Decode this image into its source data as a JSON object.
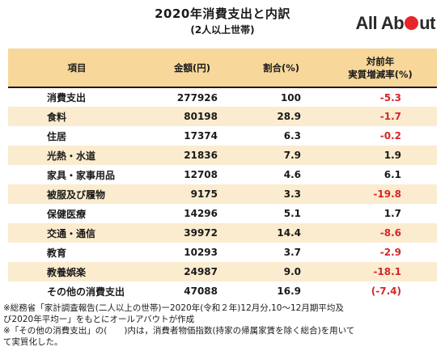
{
  "header": {
    "title": "2020年消費支出と内訳",
    "subtitle": "(2人以上世帯)",
    "logo_prefix": "All Ab",
    "logo_suffix": "ut"
  },
  "columns": {
    "item": "項目",
    "amount": "金額(円)",
    "ratio": "割合(%)",
    "change_line1": "対前年",
    "change_line2": "実質増減率(%)"
  },
  "rows": [
    {
      "item": "消費支出",
      "amount": "277926",
      "ratio": "100",
      "change": "-5.3",
      "negative": true
    },
    {
      "item": "食料",
      "amount": "80198",
      "ratio": "28.9",
      "change": "-1.7",
      "negative": true
    },
    {
      "item": "住居",
      "amount": "17374",
      "ratio": "6.3",
      "change": "-0.2",
      "negative": true
    },
    {
      "item": "光熱・水道",
      "amount": "21836",
      "ratio": "7.9",
      "change": "1.9",
      "negative": false
    },
    {
      "item": "家具・家事用品",
      "amount": "12708",
      "ratio": "4.6",
      "change": "6.1",
      "negative": false
    },
    {
      "item": "被服及び履物",
      "amount": "9175",
      "ratio": "3.3",
      "change": "-19.8",
      "negative": true
    },
    {
      "item": "保健医療",
      "amount": "14296",
      "ratio": "5.1",
      "change": "1.7",
      "negative": false
    },
    {
      "item": "交通・通信",
      "amount": "39972",
      "ratio": "14.4",
      "change": "-8.6",
      "negative": true
    },
    {
      "item": "教育",
      "amount": "10293",
      "ratio": "3.7",
      "change": "-2.9",
      "negative": true
    },
    {
      "item": "教養娯楽",
      "amount": "24987",
      "ratio": "9.0",
      "change": "-18.1",
      "negative": true
    },
    {
      "item": "その他の消費支出",
      "amount": "47088",
      "ratio": "16.9",
      "change": "(-7.4)",
      "negative": true
    }
  ],
  "notes": {
    "line1": "※総務省「家計調査報告(二人以上の世帯)ー2020年(令和２年)12月分,10～12月期平均及",
    "line2": "び2020年平均ー」をもとにオールアバウトが作成",
    "line3": "※「その他の消費支出」の(　　)内は，消費者物価指数(持家の帰属家賃を除く総合)を用いて",
    "line4": "て実質化した。"
  },
  "colors": {
    "header_bg": "#f7d79a",
    "stripe_bg": "#fbeccf",
    "negative_text": "#d6262b",
    "logo_dot": "#e8252b"
  }
}
